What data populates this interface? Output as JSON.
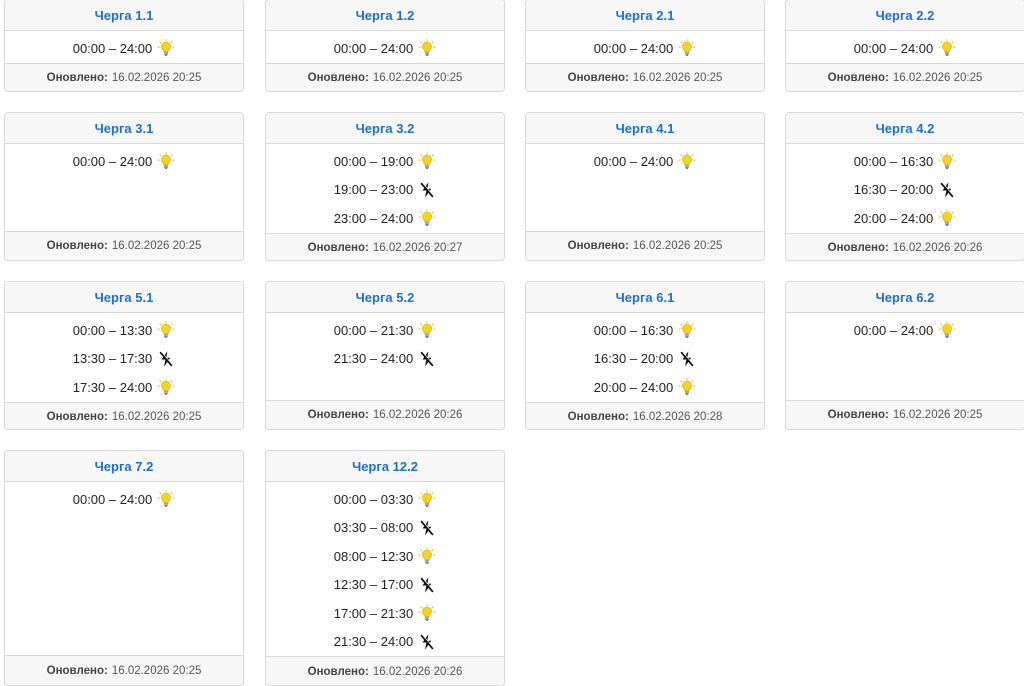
{
  "footer_label": "Оновлено:",
  "icons": {
    "on": "lightbulb-icon",
    "off": "power-off-icon",
    "bulb_color": "#f7d21e"
  },
  "queues": [
    {
      "title": "Черга 1.1",
      "updated": "16.02.2026 20:25",
      "slots": [
        {
          "range": "00:00 – 24:00",
          "status": "on"
        }
      ]
    },
    {
      "title": "Черга 1.2",
      "updated": "16.02.2026 20:25",
      "slots": [
        {
          "range": "00:00 – 24:00",
          "status": "on"
        }
      ]
    },
    {
      "title": "Черга 2.1",
      "updated": "16.02.2026 20:25",
      "slots": [
        {
          "range": "00:00 – 24:00",
          "status": "on"
        }
      ]
    },
    {
      "title": "Черга 2.2",
      "updated": "16.02.2026 20:25",
      "slots": [
        {
          "range": "00:00 – 24:00",
          "status": "on"
        }
      ]
    },
    {
      "title": "Черга 3.1",
      "updated": "16.02.2026 20:25",
      "slots": [
        {
          "range": "00:00 – 24:00",
          "status": "on"
        }
      ]
    },
    {
      "title": "Черга 3.2",
      "updated": "16.02.2026 20:27",
      "slots": [
        {
          "range": "00:00 – 19:00",
          "status": "on"
        },
        {
          "range": "19:00 – 23:00",
          "status": "off"
        },
        {
          "range": "23:00 – 24:00",
          "status": "on"
        }
      ]
    },
    {
      "title": "Черга 4.1",
      "updated": "16.02.2026 20:25",
      "slots": [
        {
          "range": "00:00 – 24:00",
          "status": "on"
        }
      ]
    },
    {
      "title": "Черга 4.2",
      "updated": "16.02.2026 20:26",
      "slots": [
        {
          "range": "00:00 – 16:30",
          "status": "on"
        },
        {
          "range": "16:30 – 20:00",
          "status": "off"
        },
        {
          "range": "20:00 – 24:00",
          "status": "on"
        }
      ]
    },
    {
      "title": "Черга 5.1",
      "updated": "16.02.2026 20:25",
      "slots": [
        {
          "range": "00:00 – 13:30",
          "status": "on"
        },
        {
          "range": "13:30 – 17:30",
          "status": "off"
        },
        {
          "range": "17:30 – 24:00",
          "status": "on"
        }
      ]
    },
    {
      "title": "Черга 5.2",
      "updated": "16.02.2026 20:26",
      "slots": [
        {
          "range": "00:00 – 21:30",
          "status": "on"
        },
        {
          "range": "21:30 – 24:00",
          "status": "off"
        }
      ]
    },
    {
      "title": "Черга 6.1",
      "updated": "16.02.2026 20:28",
      "slots": [
        {
          "range": "00:00 – 16:30",
          "status": "on"
        },
        {
          "range": "16:30 – 20:00",
          "status": "off"
        },
        {
          "range": "20:00 – 24:00",
          "status": "on"
        }
      ]
    },
    {
      "title": "Черга 6.2",
      "updated": "16.02.2026 20:25",
      "slots": [
        {
          "range": "00:00 – 24:00",
          "status": "on"
        }
      ]
    },
    {
      "title": "Черга 7.2",
      "updated": "16.02.2026 20:25",
      "slots": [
        {
          "range": "00:00 – 24:00",
          "status": "on"
        }
      ]
    },
    {
      "title": "Черга 12.2",
      "updated": "16.02.2026 20:26",
      "slots": [
        {
          "range": "00:00 – 03:30",
          "status": "on"
        },
        {
          "range": "03:30 – 08:00",
          "status": "off"
        },
        {
          "range": "08:00 – 12:30",
          "status": "on"
        },
        {
          "range": "12:30 – 17:00",
          "status": "off"
        },
        {
          "range": "17:00 – 21:30",
          "status": "on"
        },
        {
          "range": "21:30 – 24:00",
          "status": "off"
        }
      ]
    }
  ]
}
